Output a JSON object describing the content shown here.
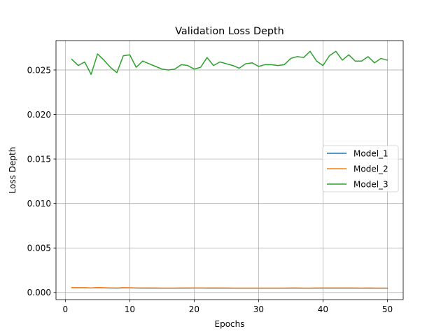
{
  "chart_data": {
    "type": "line",
    "title": "Validation Loss Depth",
    "xlabel": "Epochs",
    "ylabel": "Loss Depth",
    "xlim": [
      -1.45,
      52.45
    ],
    "ylim": [
      -0.0008,
      0.0283
    ],
    "xticks": [
      0,
      10,
      20,
      30,
      40,
      50
    ],
    "xtick_labels": [
      "0",
      "10",
      "20",
      "30",
      "40",
      "50"
    ],
    "yticks": [
      0.0,
      0.005,
      0.01,
      0.015,
      0.02,
      0.025
    ],
    "ytick_labels": [
      "0.000",
      "0.005",
      "0.010",
      "0.015",
      "0.020",
      "0.025"
    ],
    "grid": true,
    "legend_position": "center-right",
    "x": [
      1,
      2,
      3,
      4,
      5,
      6,
      7,
      8,
      9,
      10,
      11,
      12,
      13,
      14,
      15,
      16,
      17,
      18,
      19,
      20,
      21,
      22,
      23,
      24,
      25,
      26,
      27,
      28,
      29,
      30,
      31,
      32,
      33,
      34,
      35,
      36,
      37,
      38,
      39,
      40,
      41,
      42,
      43,
      44,
      45,
      46,
      47,
      48,
      49,
      50
    ],
    "series": [
      {
        "name": "Model_1",
        "color": "#1f77b4",
        "values": [
          0.00055,
          0.00053,
          0.00053,
          0.00051,
          0.00054,
          0.00052,
          0.0005,
          0.00049,
          0.00052,
          0.00052,
          0.0005,
          0.00049,
          0.00049,
          0.00049,
          0.00048,
          0.00048,
          0.00048,
          0.00049,
          0.00049,
          0.0005,
          0.0005,
          0.00049,
          0.00049,
          0.00049,
          0.00049,
          0.00048,
          0.00048,
          0.00048,
          0.00048,
          0.00048,
          0.00048,
          0.00048,
          0.00048,
          0.00048,
          0.00049,
          0.00049,
          0.00048,
          0.00048,
          0.00049,
          0.00049,
          0.00049,
          0.00049,
          0.00049,
          0.00049,
          0.00049,
          0.00048,
          0.00049,
          0.00048,
          0.00048,
          0.00048
        ]
      },
      {
        "name": "Model_2",
        "color": "#ff7f0e",
        "values": [
          0.00056,
          0.00054,
          0.00055,
          0.00052,
          0.00056,
          0.00054,
          0.00052,
          0.00051,
          0.00055,
          0.00054,
          0.00052,
          0.00051,
          0.00051,
          0.00051,
          0.0005,
          0.0005,
          0.0005,
          0.00051,
          0.00051,
          0.00052,
          0.00051,
          0.00051,
          0.00051,
          0.00051,
          0.00051,
          0.0005,
          0.0005,
          0.0005,
          0.0005,
          0.0005,
          0.0005,
          0.0005,
          0.0005,
          0.0005,
          0.00051,
          0.00051,
          0.0005,
          0.0005,
          0.00051,
          0.00051,
          0.00051,
          0.00051,
          0.00051,
          0.00051,
          0.00051,
          0.0005,
          0.00051,
          0.0005,
          0.0005,
          0.0005
        ]
      },
      {
        "name": "Model_3",
        "color": "#2ca02c",
        "values": [
          0.0262,
          0.0255,
          0.0259,
          0.0245,
          0.0268,
          0.0261,
          0.0253,
          0.0247,
          0.0266,
          0.0267,
          0.0253,
          0.026,
          0.0257,
          0.0254,
          0.0251,
          0.025,
          0.0251,
          0.0256,
          0.0255,
          0.0251,
          0.0253,
          0.0264,
          0.0255,
          0.0259,
          0.0257,
          0.0255,
          0.0252,
          0.0257,
          0.0258,
          0.0254,
          0.0256,
          0.0256,
          0.0255,
          0.0256,
          0.0263,
          0.0265,
          0.0264,
          0.0271,
          0.026,
          0.0255,
          0.0266,
          0.0271,
          0.0261,
          0.0267,
          0.026,
          0.026,
          0.0265,
          0.0258,
          0.0263,
          0.0261
        ]
      }
    ]
  }
}
